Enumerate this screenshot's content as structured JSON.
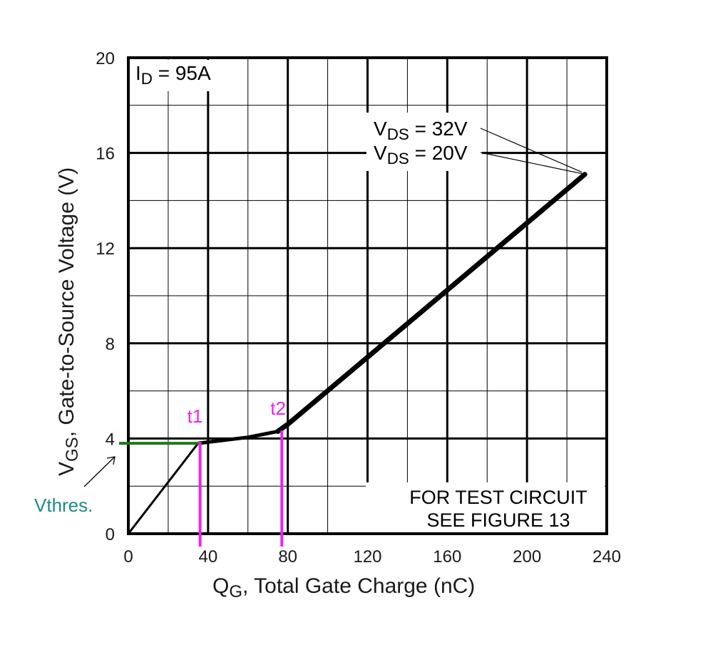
{
  "chart_data": {
    "type": "line",
    "xlabel_main": "Q",
    "xlabel_sub": "G",
    "xlabel_rest": ", Total Gate Charge (nC)",
    "ylabel_main": "V",
    "ylabel_sub": "GS",
    "ylabel_rest": ", Gate-to-Source Voltage (V)",
    "xlim": [
      0,
      240
    ],
    "ylim": [
      0,
      20
    ],
    "x_ticks": [
      0,
      40,
      80,
      120,
      160,
      200,
      240
    ],
    "y_ticks": [
      0,
      4,
      8,
      12,
      16,
      20
    ],
    "x_tick_labels": [
      "0",
      "40",
      "80",
      "120",
      "160",
      "200",
      "240"
    ],
    "y_tick_labels": [
      "0",
      "4",
      "8",
      "12",
      "16",
      "20"
    ],
    "grid": true,
    "curve": [
      {
        "x": 0,
        "y": 0
      },
      {
        "x": 35,
        "y": 3.8
      },
      {
        "x": 60,
        "y": 4.05
      },
      {
        "x": 75,
        "y": 4.3
      },
      {
        "x": 80,
        "y": 4.6
      },
      {
        "x": 229,
        "y": 15.1
      }
    ],
    "id_label": {
      "main": "I",
      "sub": "D",
      "rest": " = 95A"
    },
    "vds_labels": [
      {
        "main": "V",
        "sub": "DS",
        "rest": " = 32V"
      },
      {
        "main": "V",
        "sub": "DS",
        "rest": " = 20V"
      }
    ],
    "note_lines": [
      "FOR TEST CIRCUIT",
      "SEE FIGURE 13"
    ],
    "markers": [
      {
        "label": "t1",
        "x": 36
      },
      {
        "label": "t2",
        "x": 77
      }
    ],
    "threshold": {
      "label": "Vthres.",
      "y": 3.8
    },
    "colors": {
      "curve": "#000000",
      "grid": "#000000",
      "markers": "#ee22ee",
      "threshold_line": "#1a7a1a",
      "threshold_label": "#1a8a8a"
    }
  }
}
